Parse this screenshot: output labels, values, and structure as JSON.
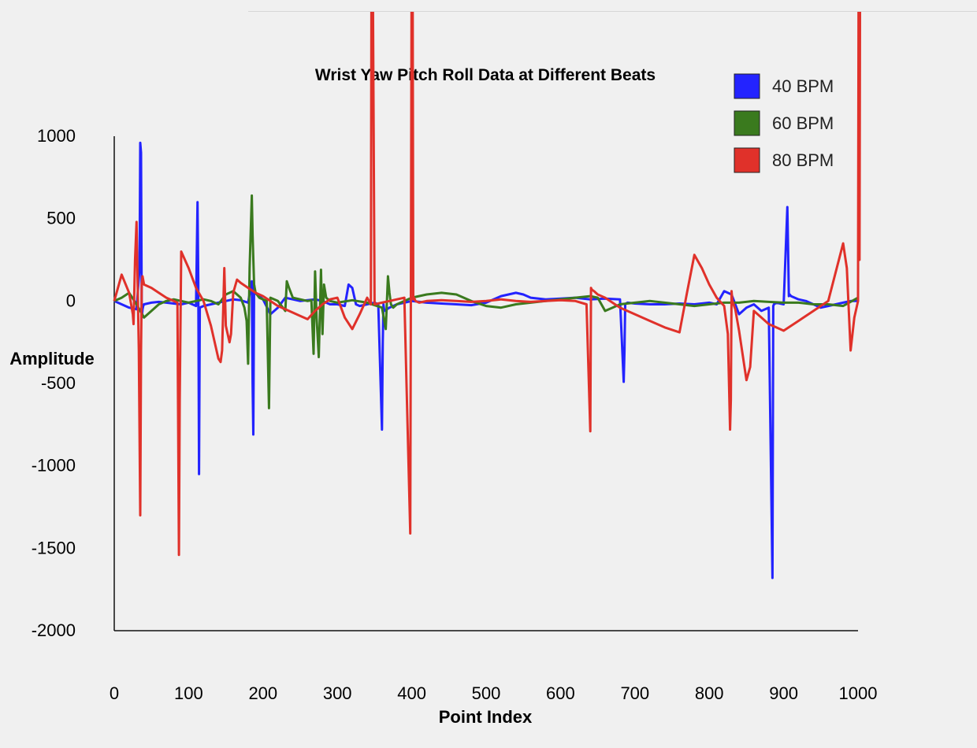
{
  "chart_data": {
    "type": "line",
    "title": "Wrist Yaw Pitch Roll Data at Different Beats",
    "xlabel": "Point Index",
    "ylabel": "Amplitude",
    "xlim": [
      0,
      1000
    ],
    "ylim": [
      -2000,
      1000
    ],
    "xticks": [
      0,
      100,
      200,
      300,
      400,
      500,
      600,
      700,
      800,
      900,
      1000
    ],
    "yticks": [
      1000,
      500,
      0,
      -500,
      -1000,
      -1500,
      -2000
    ],
    "grid": false,
    "legend_position": "top-right",
    "series": [
      {
        "name": "40 BPM",
        "color": "#2323ff",
        "x": [
          0,
          10,
          20,
          30,
          34,
          35,
          36,
          37,
          38,
          39,
          40,
          50,
          60,
          70,
          80,
          90,
          100,
          110,
          111,
          112,
          113,
          114,
          115,
          120,
          130,
          140,
          150,
          160,
          170,
          180,
          185,
          186,
          187,
          188,
          189,
          195,
          200,
          210,
          220,
          230,
          240,
          250,
          260,
          270,
          280,
          290,
          300,
          310,
          315,
          320,
          325,
          330,
          340,
          350,
          355,
          360,
          361,
          362,
          363,
          370,
          380,
          390,
          400,
          420,
          440,
          460,
          480,
          500,
          520,
          540,
          550,
          560,
          580,
          600,
          620,
          640,
          660,
          680,
          685,
          686,
          687,
          688,
          690,
          700,
          720,
          740,
          760,
          780,
          800,
          810,
          820,
          830,
          840,
          850,
          860,
          870,
          880,
          885,
          886,
          887,
          890,
          900,
          905,
          906,
          907,
          908,
          910,
          920,
          930,
          940,
          950,
          960,
          970,
          980,
          990,
          1000
        ],
        "y": [
          0,
          -20,
          -40,
          -50,
          200,
          960,
          900,
          -100,
          -50,
          -30,
          -20,
          -10,
          -5,
          -10,
          -15,
          -20,
          -10,
          -30,
          300,
          600,
          100,
          -1050,
          -40,
          -30,
          -20,
          -10,
          0,
          10,
          5,
          -10,
          120,
          -500,
          -810,
          100,
          50,
          30,
          10,
          -80,
          -40,
          20,
          10,
          0,
          5,
          10,
          0,
          -20,
          -20,
          -30,
          100,
          80,
          -20,
          -30,
          -20,
          -10,
          -20,
          -780,
          -250,
          -20,
          -60,
          -40,
          -20,
          -10,
          0,
          -10,
          -15,
          -20,
          -25,
          -10,
          30,
          50,
          40,
          20,
          10,
          15,
          20,
          10,
          15,
          10,
          -490,
          -300,
          -20,
          -15,
          -10,
          -15,
          -20,
          -20,
          -15,
          -20,
          -10,
          -20,
          60,
          40,
          -80,
          -40,
          -20,
          -60,
          -40,
          -1680,
          -30,
          -20,
          -10,
          -20,
          570,
          300,
          30,
          40,
          30,
          10,
          0,
          -20,
          -40,
          -30,
          -20,
          -10,
          0,
          0
        ]
      },
      {
        "name": "60 BPM",
        "color": "#3a7a1e",
        "x": [
          0,
          10,
          20,
          30,
          40,
          50,
          60,
          70,
          80,
          90,
          100,
          110,
          120,
          130,
          140,
          150,
          160,
          170,
          175,
          178,
          180,
          182,
          185,
          186,
          188,
          190,
          195,
          200,
          205,
          208,
          210,
          220,
          230,
          232,
          235,
          240,
          250,
          260,
          265,
          268,
          270,
          272,
          275,
          278,
          280,
          282,
          285,
          290,
          300,
          320,
          340,
          360,
          365,
          368,
          370,
          372,
          375,
          380,
          400,
          420,
          440,
          460,
          480,
          500,
          520,
          540,
          560,
          580,
          600,
          620,
          640,
          650,
          660,
          670,
          680,
          700,
          720,
          740,
          760,
          780,
          800,
          820,
          840,
          860,
          880,
          900,
          920,
          940,
          960,
          980,
          1000
        ],
        "y": [
          0,
          20,
          50,
          -20,
          -100,
          -60,
          -20,
          0,
          10,
          0,
          -10,
          0,
          10,
          0,
          -20,
          40,
          60,
          20,
          -40,
          -120,
          -380,
          200,
          640,
          400,
          100,
          50,
          20,
          10,
          0,
          -650,
          20,
          0,
          -60,
          120,
          80,
          20,
          10,
          0,
          5,
          -320,
          180,
          -100,
          -340,
          190,
          -200,
          100,
          20,
          0,
          -10,
          5,
          -10,
          -40,
          -170,
          150,
          50,
          -20,
          -40,
          -20,
          20,
          40,
          50,
          40,
          0,
          -30,
          -40,
          -20,
          -10,
          0,
          10,
          20,
          30,
          20,
          -60,
          -40,
          -20,
          -10,
          0,
          -10,
          -20,
          -30,
          -20,
          -10,
          -10,
          0,
          -5,
          -10,
          -10,
          -20,
          -20,
          -30,
          20
        ]
      },
      {
        "name": "80 BPM",
        "color": "#e0312a",
        "x": [
          0,
          10,
          20,
          25,
          26,
          28,
          30,
          33,
          34,
          35,
          36,
          37,
          38,
          40,
          50,
          60,
          70,
          80,
          85,
          87,
          88,
          90,
          100,
          110,
          120,
          130,
          140,
          143,
          145,
          148,
          150,
          155,
          157,
          160,
          165,
          170,
          180,
          190,
          200,
          210,
          220,
          230,
          240,
          250,
          260,
          270,
          280,
          290,
          300,
          310,
          320,
          330,
          340,
          345,
          346,
          347,
          350,
          360,
          370,
          380,
          390,
          398,
          399,
          400,
          401,
          402,
          403,
          404,
          405,
          410,
          420,
          440,
          460,
          480,
          500,
          520,
          540,
          560,
          580,
          600,
          620,
          635,
          640,
          641,
          642,
          645,
          650,
          660,
          680,
          700,
          720,
          740,
          760,
          770,
          780,
          790,
          800,
          810,
          820,
          825,
          828,
          829,
          830,
          831,
          835,
          840,
          850,
          855,
          860,
          870,
          880,
          890,
          900,
          920,
          940,
          960,
          980,
          985,
          990,
          995,
          1000,
          1001,
          1002,
          1003
        ],
        "y": [
          0,
          160,
          50,
          -80,
          -140,
          250,
          480,
          -300,
          -800,
          -1300,
          -300,
          100,
          150,
          100,
          80,
          50,
          20,
          0,
          -10,
          -1540,
          -600,
          300,
          200,
          80,
          0,
          -150,
          -350,
          -370,
          -300,
          200,
          -150,
          -250,
          -200,
          50,
          130,
          110,
          80,
          50,
          30,
          0,
          -30,
          -50,
          -70,
          -90,
          -110,
          -60,
          -20,
          10,
          20,
          -100,
          -170,
          -80,
          20,
          -20,
          2300,
          2500,
          -20,
          -10,
          0,
          10,
          20,
          -1410,
          470,
          2400,
          2500,
          10,
          20,
          10,
          0,
          -10,
          0,
          5,
          0,
          -5,
          0,
          10,
          0,
          -5,
          0,
          5,
          0,
          -20,
          -790,
          80,
          70,
          60,
          40,
          20,
          -40,
          -80,
          -120,
          -160,
          -190,
          50,
          280,
          200,
          100,
          20,
          -30,
          -200,
          -780,
          -600,
          60,
          0,
          -50,
          -180,
          -480,
          -400,
          -60,
          -100,
          -140,
          -160,
          -180,
          -120,
          -60,
          0,
          350,
          200,
          -300,
          -100,
          0,
          2400,
          250,
          2500
        ]
      }
    ]
  }
}
